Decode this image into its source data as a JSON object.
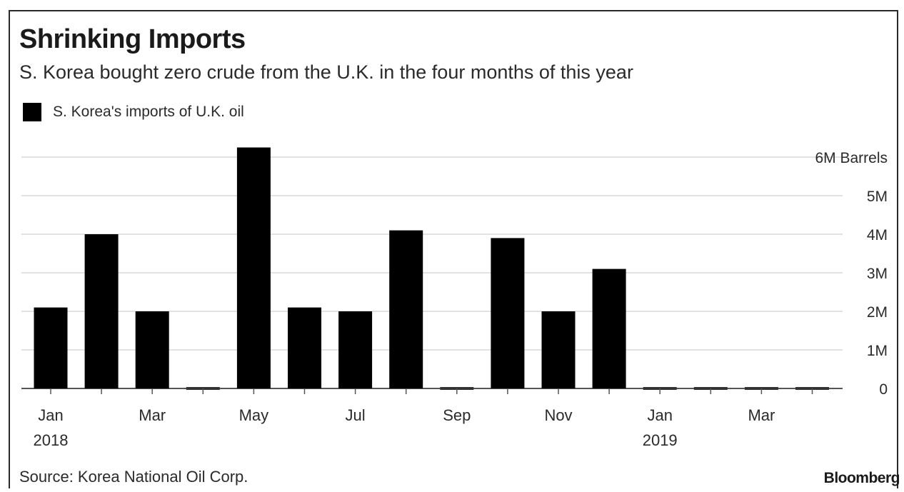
{
  "chart_data": {
    "type": "bar",
    "title": "Shrinking Imports",
    "subtitle": "S. Korea bought zero crude from the U.K. in the four months of this year",
    "series": [
      {
        "name": "S. Korea's imports of U.K. oil",
        "values": [
          2.1,
          4.0,
          2.0,
          0,
          6.25,
          2.1,
          2.0,
          4.1,
          0,
          3.9,
          2.0,
          3.1,
          0,
          0,
          0,
          0
        ]
      }
    ],
    "categories": [
      "Jan 2018",
      "Feb 2018",
      "Mar 2018",
      "Apr 2018",
      "May 2018",
      "Jun 2018",
      "Jul 2018",
      "Aug 2018",
      "Sep 2018",
      "Oct 2018",
      "Nov 2018",
      "Dec 2018",
      "Jan 2019",
      "Feb 2019",
      "Mar 2019",
      "Apr 2019"
    ],
    "x_tick_labels": [
      {
        "index": 0,
        "label": "Jan",
        "sublabel": "2018"
      },
      {
        "index": 2,
        "label": "Mar",
        "sublabel": ""
      },
      {
        "index": 4,
        "label": "May",
        "sublabel": ""
      },
      {
        "index": 6,
        "label": "Jul",
        "sublabel": ""
      },
      {
        "index": 8,
        "label": "Sep",
        "sublabel": ""
      },
      {
        "index": 10,
        "label": "Nov",
        "sublabel": ""
      },
      {
        "index": 12,
        "label": "Jan",
        "sublabel": "2019"
      },
      {
        "index": 14,
        "label": "Mar",
        "sublabel": ""
      }
    ],
    "y_ticks": [
      {
        "value": 0,
        "label": "0"
      },
      {
        "value": 1,
        "label": "1M"
      },
      {
        "value": 2,
        "label": "2M"
      },
      {
        "value": 3,
        "label": "3M"
      },
      {
        "value": 4,
        "label": "4M"
      },
      {
        "value": 5,
        "label": "5M"
      },
      {
        "value": 6,
        "label": "6M Barrels"
      }
    ],
    "ylim": [
      0,
      6.3
    ],
    "grid": true,
    "legend_position": "top-left",
    "y_axis_position": "right",
    "bar_color": "#000000",
    "grid_color": "#e2e2e2",
    "zero_marker_color": "#333333"
  },
  "footer": {
    "source": "Source: Korea National Oil Corp.",
    "brand": "Bloomberg"
  }
}
